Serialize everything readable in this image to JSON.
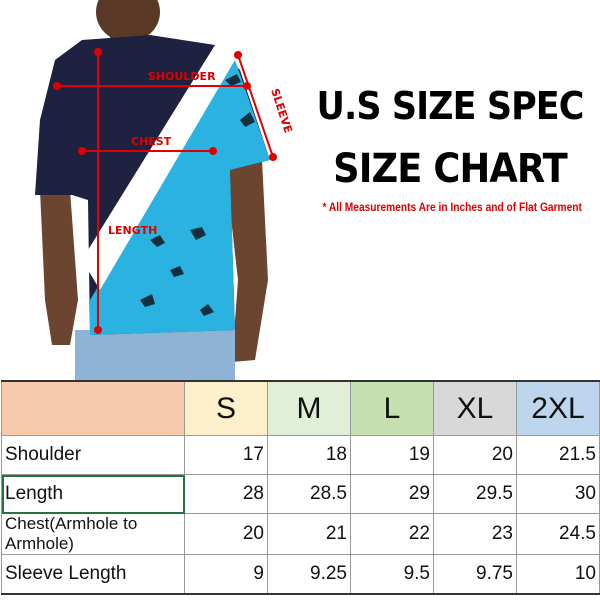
{
  "diagram": {
    "labels": {
      "shoulder": "SHOULDER",
      "chest": "CHEST",
      "length": "LENGTH",
      "sleeve": "SLEEVE"
    }
  },
  "title_line1": "U.S SIZE SPEC",
  "title_line2": "SIZE CHART",
  "note": "* All Measurements Are in Inches and of Flat Garment",
  "table": {
    "sizes": [
      {
        "label": "S",
        "color": "#fdefc9"
      },
      {
        "label": "M",
        "color": "#e1efd8"
      },
      {
        "label": "L",
        "color": "#c6e0b2"
      },
      {
        "label": "XL",
        "color": "#d8d8d8"
      },
      {
        "label": "2XL",
        "color": "#bdd6ee"
      }
    ],
    "corner_color": "#f7caac",
    "rows": [
      {
        "name": "Shoulder",
        "values": [
          "17",
          "18",
          "19",
          "20",
          "21.5"
        ]
      },
      {
        "name": "Length",
        "values": [
          "28",
          "28.5",
          "29",
          "29.5",
          "30"
        ]
      },
      {
        "name": "Chest(Armhole to Armhole)",
        "values": [
          "20",
          "21",
          "22",
          "23",
          "24.5"
        ]
      },
      {
        "name": "Sleeve Length",
        "values": [
          "9",
          "9.25",
          "9.5",
          "9.75",
          "10"
        ]
      }
    ]
  }
}
